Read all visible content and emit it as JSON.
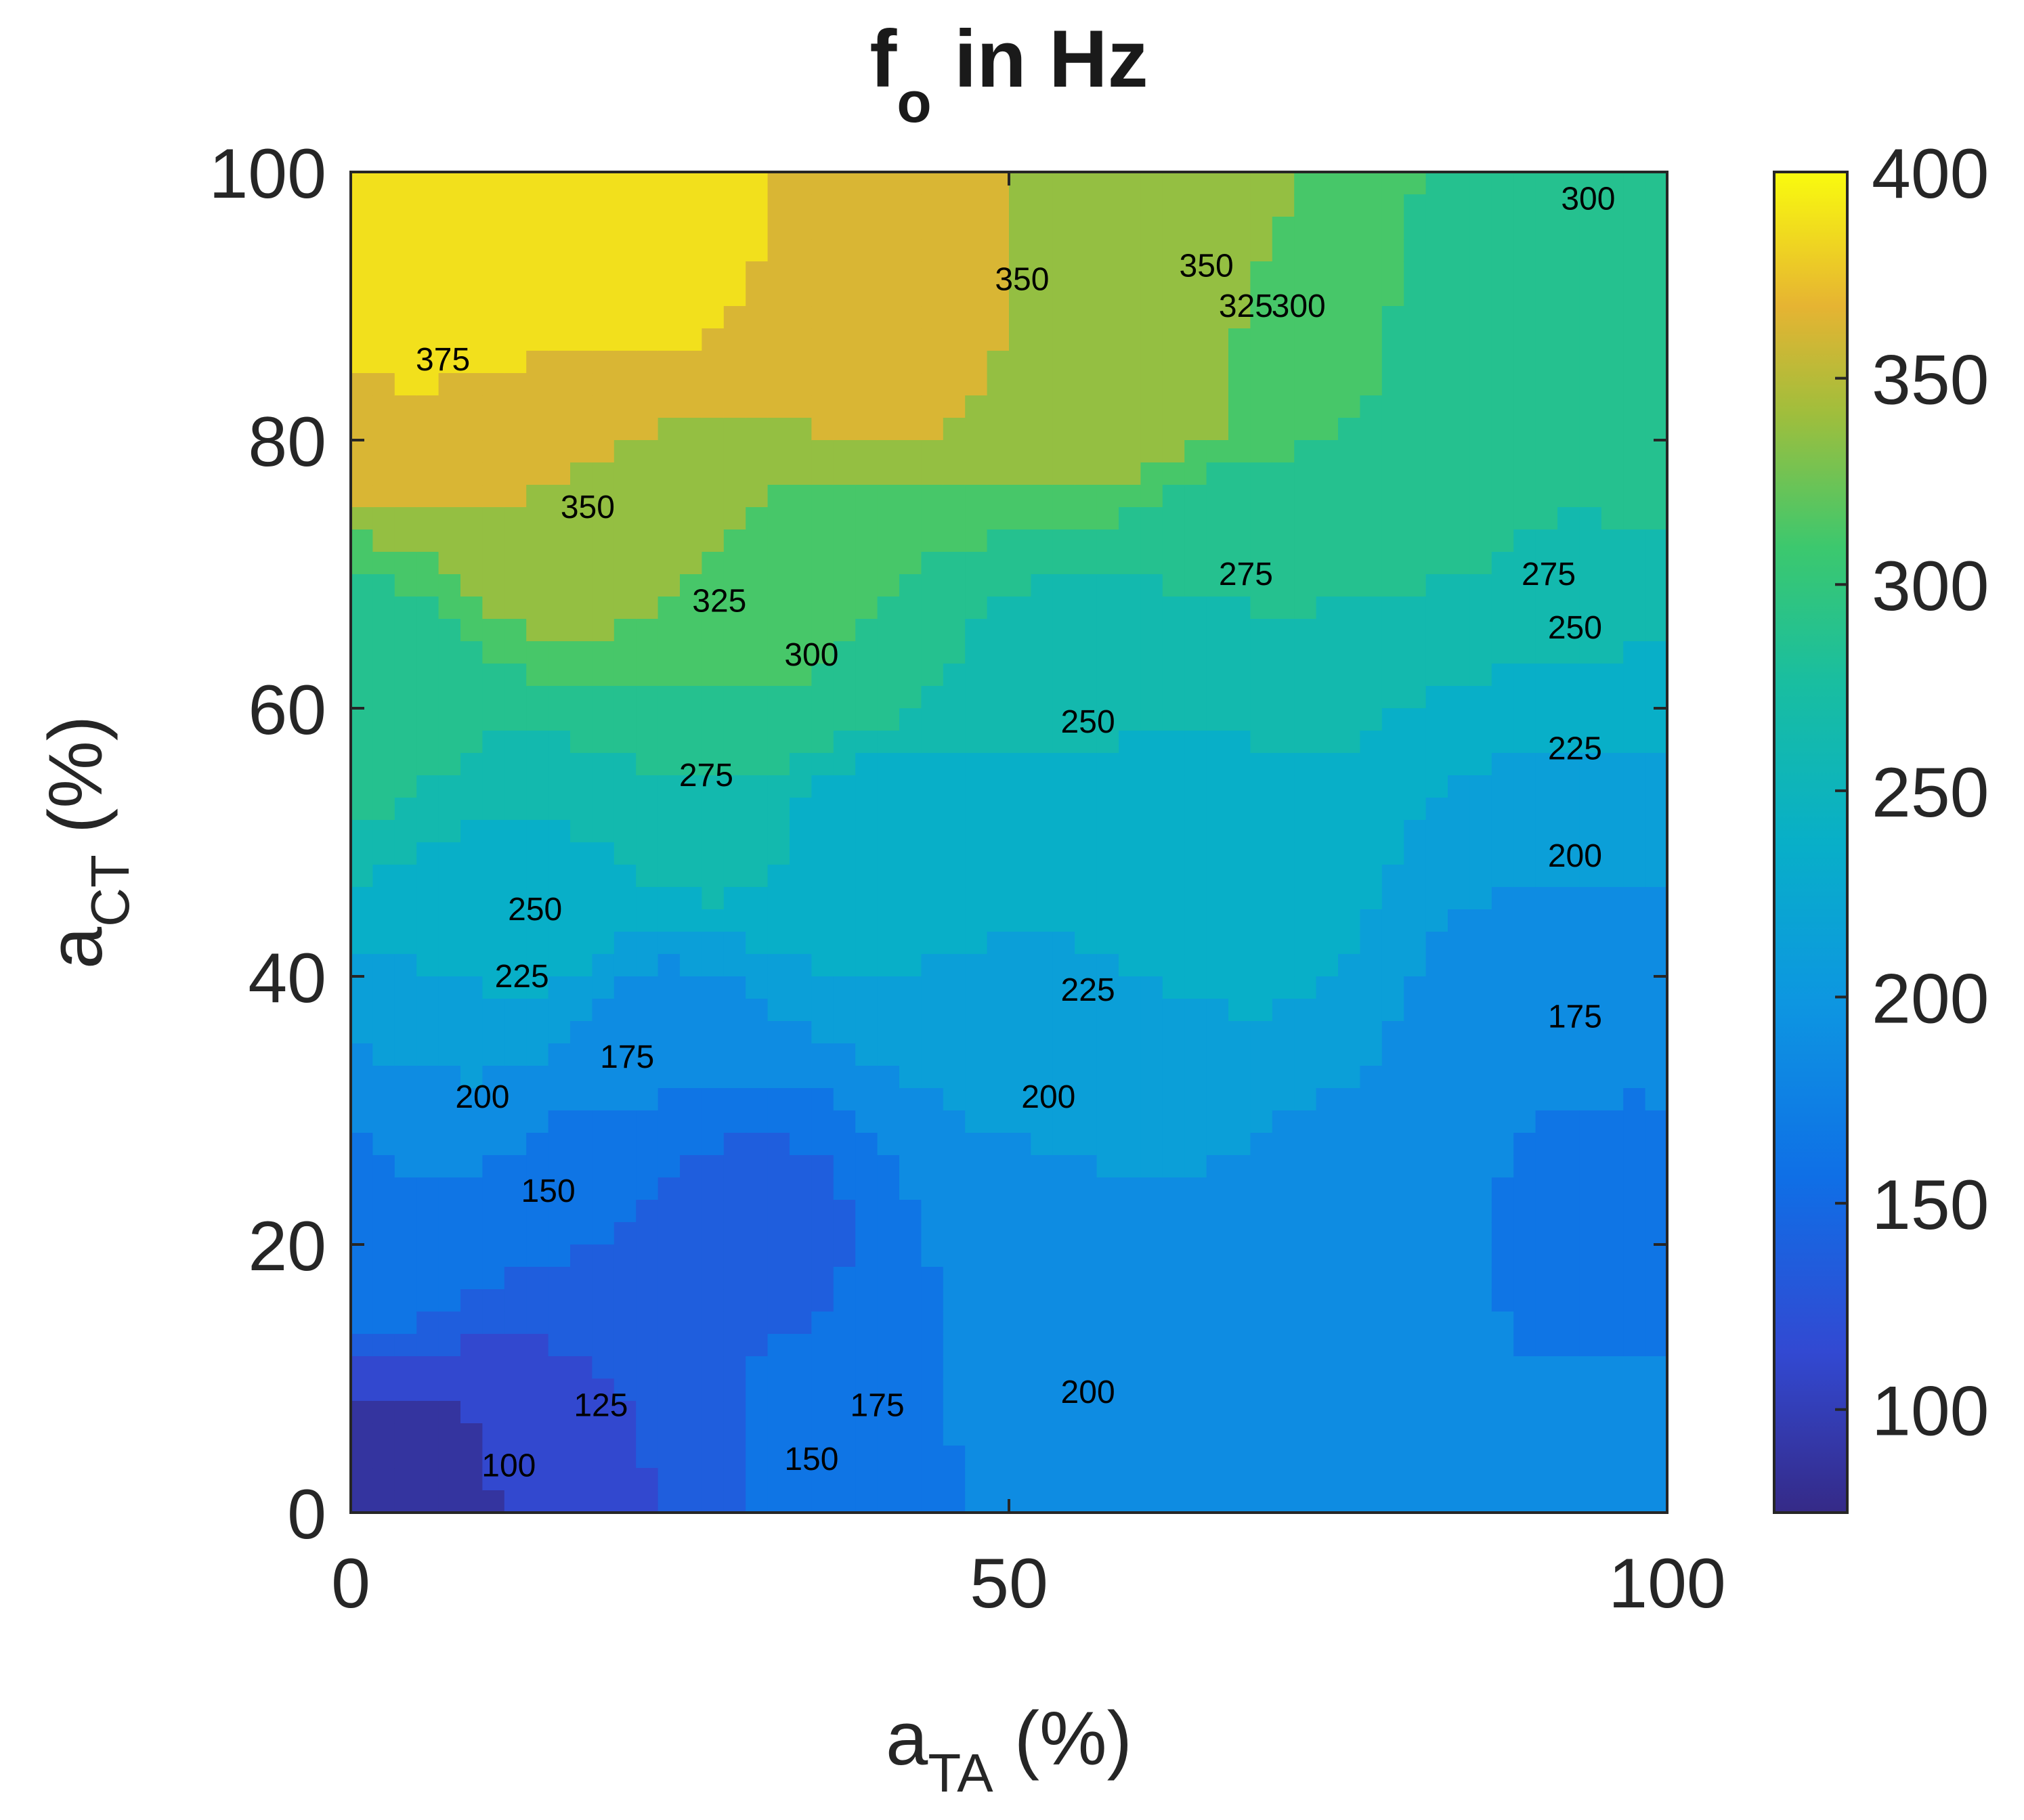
{
  "chart_data": {
    "type": "contour",
    "title": {
      "main": "f",
      "sub": "o",
      "suffix": " in Hz"
    },
    "xlabel": {
      "main": "a",
      "sub": "TA",
      "suffix": " (%)"
    },
    "ylabel": {
      "main": "a",
      "sub": "CT",
      "suffix": " (%)"
    },
    "xlim": [
      0,
      100
    ],
    "ylim": [
      0,
      100
    ],
    "x_ticks": [
      "0",
      "50",
      "100"
    ],
    "y_ticks": [
      "0",
      "20",
      "40",
      "60",
      "80",
      "100"
    ],
    "colorbar": {
      "range": [
        75,
        400
      ],
      "ticks": [
        "100",
        "150",
        "200",
        "250",
        "300",
        "350",
        "400"
      ],
      "colormap": "parula"
    },
    "contour_levels": [
      100,
      125,
      150,
      175,
      200,
      225,
      250,
      275,
      300,
      325,
      350,
      375
    ],
    "contour_labels": [
      {
        "text": "375",
        "x": 7,
        "y": 86
      },
      {
        "text": "350",
        "x": 18,
        "y": 75
      },
      {
        "text": "350",
        "x": 51,
        "y": 92
      },
      {
        "text": "350",
        "x": 65,
        "y": 93
      },
      {
        "text": "325",
        "x": 68,
        "y": 90
      },
      {
        "text": "325",
        "x": 28,
        "y": 68
      },
      {
        "text": "300",
        "x": 72,
        "y": 90
      },
      {
        "text": "300",
        "x": 94,
        "y": 98
      },
      {
        "text": "300",
        "x": 35,
        "y": 64
      },
      {
        "text": "275",
        "x": 68,
        "y": 70
      },
      {
        "text": "275",
        "x": 91,
        "y": 70
      },
      {
        "text": "275",
        "x": 27,
        "y": 55
      },
      {
        "text": "250",
        "x": 56,
        "y": 59
      },
      {
        "text": "250",
        "x": 93,
        "y": 66
      },
      {
        "text": "250",
        "x": 14,
        "y": 45
      },
      {
        "text": "225",
        "x": 93,
        "y": 57
      },
      {
        "text": "225",
        "x": 56,
        "y": 39
      },
      {
        "text": "225",
        "x": 13,
        "y": 40
      },
      {
        "text": "200",
        "x": 93,
        "y": 49
      },
      {
        "text": "200",
        "x": 53,
        "y": 31
      },
      {
        "text": "200",
        "x": 10,
        "y": 31
      },
      {
        "text": "200",
        "x": 56,
        "y": 9
      },
      {
        "text": "175",
        "x": 93,
        "y": 37
      },
      {
        "text": "175",
        "x": 21,
        "y": 34
      },
      {
        "text": "175",
        "x": 40,
        "y": 8
      },
      {
        "text": "150",
        "x": 15,
        "y": 24
      },
      {
        "text": "150",
        "x": 35,
        "y": 4
      },
      {
        "text": "125",
        "x": 19,
        "y": 8
      },
      {
        "text": "100",
        "x": 12,
        "y": 3.5
      }
    ]
  }
}
